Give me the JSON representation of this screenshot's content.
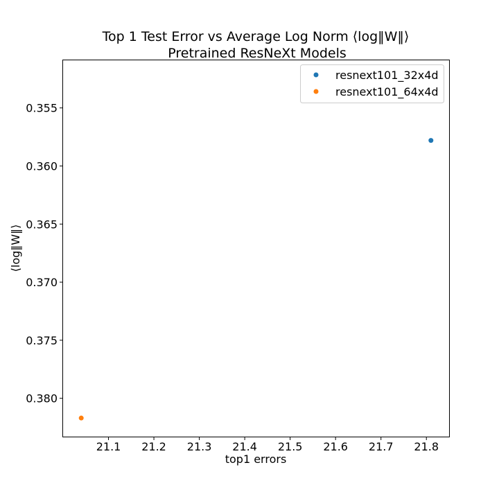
{
  "chart_data": {
    "type": "scatter",
    "title": "Top 1 Test Error vs  Average Log Norm ⟨log‖W‖⟩",
    "subtitle": "Pretrained ResNeXt Models",
    "xlabel": "top1 errors",
    "ylabel": "⟨log‖W‖⟩",
    "xlim": [
      21.0,
      21.85
    ],
    "ylim": [
      0.3833,
      0.3509
    ],
    "y_inverted": true,
    "x_ticks": [
      {
        "value": 21.1,
        "label": "21.1"
      },
      {
        "value": 21.2,
        "label": "21.2"
      },
      {
        "value": 21.3,
        "label": "21.3"
      },
      {
        "value": 21.4,
        "label": "21.4"
      },
      {
        "value": 21.5,
        "label": "21.5"
      },
      {
        "value": 21.6,
        "label": "21.6"
      },
      {
        "value": 21.7,
        "label": "21.7"
      },
      {
        "value": 21.8,
        "label": "21.8"
      }
    ],
    "y_ticks": [
      {
        "value": 0.355,
        "label": "0.355"
      },
      {
        "value": 0.36,
        "label": "0.360"
      },
      {
        "value": 0.365,
        "label": "0.365"
      },
      {
        "value": 0.37,
        "label": "0.370"
      },
      {
        "value": 0.375,
        "label": "0.375"
      },
      {
        "value": 0.38,
        "label": "0.380"
      }
    ],
    "grid": false,
    "legend_position": "top-right",
    "series": [
      {
        "name": "resnext101_32x4d",
        "color": "#1f77b4",
        "points": [
          {
            "x": 21.81,
            "y": 0.3578
          }
        ]
      },
      {
        "name": "resnext101_64x4d",
        "color": "#ff7f0e",
        "points": [
          {
            "x": 21.04,
            "y": 0.3817
          }
        ]
      }
    ]
  }
}
